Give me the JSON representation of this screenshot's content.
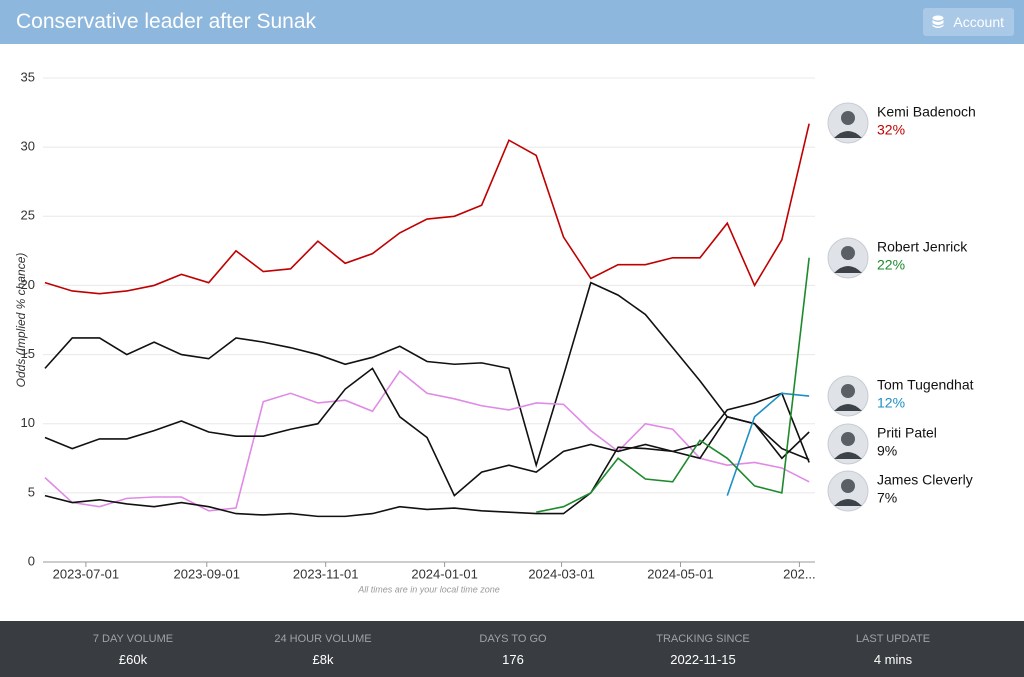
{
  "header": {
    "title": "Conservative leader after Sunak",
    "account": "Account"
  },
  "chart_data": {
    "type": "line",
    "y_label": "Odds (Implied % chance)",
    "note": "All times are in your local time zone",
    "x": [
      "2023-06-10",
      "2023-06-24",
      "2023-07-08",
      "2023-07-22",
      "2023-08-05",
      "2023-08-19",
      "2023-09-02",
      "2023-09-16",
      "2023-09-30",
      "2023-10-14",
      "2023-10-28",
      "2023-11-11",
      "2023-11-25",
      "2023-12-09",
      "2023-12-23",
      "2024-01-06",
      "2024-01-20",
      "2024-02-03",
      "2024-02-17",
      "2024-03-02",
      "2024-03-16",
      "2024-03-30",
      "2024-04-13",
      "2024-04-27",
      "2024-05-11",
      "2024-05-25",
      "2024-06-08",
      "2024-06-22",
      "2024-07-06"
    ],
    "xlim": [
      "2023-06-09",
      "2024-07-09"
    ],
    "xticks": [
      "2023-07-01",
      "2023-09-01",
      "2023-11-01",
      "2024-01-01",
      "2024-03-01",
      "2024-05-01",
      {
        "value": "2024-07-01",
        "label": "202..."
      }
    ],
    "ylim": [
      0,
      35
    ],
    "yticks": [
      0,
      5,
      10,
      15,
      20,
      25,
      30,
      35
    ],
    "grid": true,
    "series": [
      {
        "name": "Kemi Badenoch",
        "color": "#c00000",
        "current": {
          "value": 32,
          "label": "32%"
        },
        "values": [
          20.2,
          19.6,
          19.4,
          19.6,
          20.0,
          20.8,
          20.2,
          22.5,
          21.0,
          21.2,
          23.2,
          21.6,
          22.3,
          23.8,
          24.8,
          25.0,
          25.8,
          30.5,
          29.4,
          23.5,
          20.5,
          21.5,
          21.5,
          22.0,
          22.0,
          24.5,
          20.0,
          23.3,
          31.7
        ]
      },
      {
        "name": "Robert Jenrick",
        "color": "#1e8a2e",
        "current": {
          "value": 22,
          "label": "22%"
        },
        "values": [
          null,
          null,
          null,
          null,
          null,
          null,
          null,
          null,
          null,
          null,
          null,
          null,
          null,
          null,
          null,
          null,
          null,
          null,
          3.6,
          4.0,
          5.0,
          7.5,
          6.0,
          5.8,
          8.8,
          7.5,
          5.5,
          5.0,
          22.0
        ]
      },
      {
        "name": "Tom Tugendhat",
        "color": "#1b8fc6",
        "current": {
          "value": 12,
          "label": "12%"
        },
        "values": [
          null,
          null,
          null,
          null,
          null,
          null,
          null,
          null,
          null,
          null,
          null,
          null,
          null,
          null,
          null,
          null,
          null,
          null,
          null,
          null,
          null,
          null,
          null,
          null,
          null,
          4.8,
          10.5,
          12.2,
          12.0
        ]
      },
      {
        "name": "Priti Patel",
        "color": "#111111",
        "current": {
          "value": 9,
          "label": "9%"
        },
        "values": [
          9.0,
          8.2,
          8.9,
          8.9,
          9.5,
          10.2,
          9.4,
          9.1,
          9.1,
          9.6,
          10.0,
          12.5,
          14.0,
          10.5,
          9.0,
          4.8,
          6.5,
          7.0,
          6.5,
          8.0,
          8.5,
          8.0,
          8.5,
          8.0,
          7.5,
          10.5,
          10.0,
          7.5,
          9.4
        ]
      },
      {
        "name": "James Cleverly",
        "color": "#111111",
        "current": {
          "value": 7,
          "label": "7%"
        },
        "values": [
          4.8,
          4.3,
          4.5,
          4.2,
          4.0,
          4.3,
          4.0,
          3.5,
          3.4,
          3.5,
          3.3,
          3.3,
          3.5,
          4.0,
          3.8,
          3.9,
          3.7,
          3.6,
          3.5,
          3.5,
          5.0,
          8.3,
          8.2,
          8.0,
          8.5,
          11.0,
          11.5,
          12.2,
          7.2
        ]
      },
      {
        "color": "#e08ae6",
        "values": [
          6.1,
          4.3,
          4.0,
          4.6,
          4.7,
          4.7,
          3.7,
          3.9,
          11.6,
          12.2,
          11.5,
          11.7,
          10.9,
          13.8,
          12.2,
          11.8,
          11.3,
          11.0,
          11.5,
          11.4,
          9.5,
          8.0,
          10.0,
          9.6,
          7.5,
          7.0,
          7.2,
          6.8,
          5.8
        ]
      },
      {
        "color": "#111111",
        "values": [
          14.0,
          16.2,
          16.2,
          15.0,
          15.9,
          15.0,
          14.7,
          16.2,
          15.9,
          15.5,
          15.0,
          14.3,
          14.8,
          15.6,
          14.5,
          14.3,
          14.4,
          14.0,
          7.0,
          13.5,
          20.2,
          19.3,
          17.9,
          15.5,
          13.1,
          10.5,
          10.0,
          8.2,
          7.4
        ]
      }
    ]
  },
  "stats": [
    {
      "label": "7 DAY VOLUME",
      "value": "£60k"
    },
    {
      "label": "24 HOUR VOLUME",
      "value": "£8k"
    },
    {
      "label": "DAYS TO GO",
      "value": "176"
    },
    {
      "label": "TRACKING SINCE",
      "value": "2022-11-15"
    },
    {
      "label": "LAST UPDATE",
      "value": "4 mins"
    }
  ]
}
